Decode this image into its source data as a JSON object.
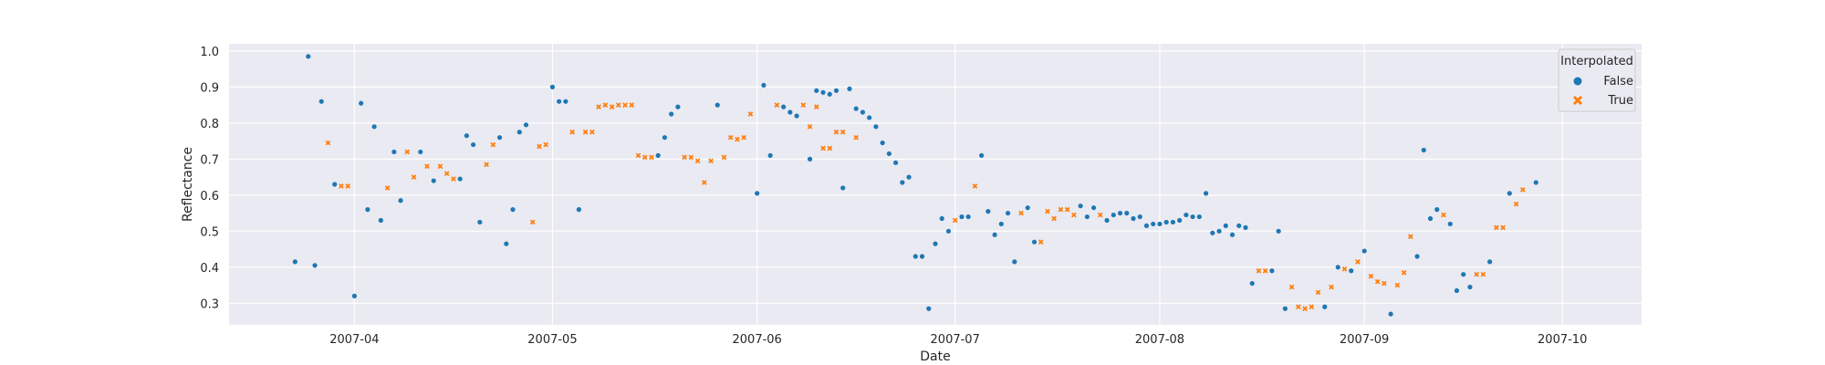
{
  "chart_data": {
    "type": "scatter",
    "title": "",
    "xlabel": "Date",
    "ylabel": "Reflectance",
    "xlim": [
      "2007-03-13",
      "2007-10-13"
    ],
    "ylim": [
      0.24,
      1.02
    ],
    "x_ticks": [
      "2007-04-01",
      "2007-05-01",
      "2007-06-01",
      "2007-07-01",
      "2007-08-01",
      "2007-09-01",
      "2007-10-01"
    ],
    "x_tick_labels": [
      "2007-04",
      "2007-05",
      "2007-06",
      "2007-07",
      "2007-08",
      "2007-09",
      "2007-10"
    ],
    "y_ticks": [
      0.3,
      0.4,
      0.5,
      0.6,
      0.7,
      0.8,
      0.9,
      1.0
    ],
    "y_tick_labels": [
      "0.3",
      "0.4",
      "0.5",
      "0.6",
      "0.7",
      "0.8",
      "0.9",
      "1.0"
    ],
    "grid": true,
    "background": "#eaeaf2",
    "legend": {
      "title": "Interpolated",
      "placement": "top-right"
    },
    "series": [
      {
        "name": "False",
        "color": "#1f77b4",
        "marker": "circle",
        "points": [
          [
            "2007-03-23",
            0.415
          ],
          [
            "2007-03-25",
            0.985
          ],
          [
            "2007-03-26",
            0.405
          ],
          [
            "2007-03-27",
            0.86
          ],
          [
            "2007-03-29",
            0.63
          ],
          [
            "2007-04-01",
            0.32
          ],
          [
            "2007-04-02",
            0.855
          ],
          [
            "2007-04-03",
            0.56
          ],
          [
            "2007-04-04",
            0.79
          ],
          [
            "2007-04-05",
            0.53
          ],
          [
            "2007-04-07",
            0.72
          ],
          [
            "2007-04-08",
            0.585
          ],
          [
            "2007-04-11",
            0.72
          ],
          [
            "2007-04-13",
            0.64
          ],
          [
            "2007-04-17",
            0.645
          ],
          [
            "2007-04-18",
            0.765
          ],
          [
            "2007-04-19",
            0.74
          ],
          [
            "2007-04-20",
            0.525
          ],
          [
            "2007-04-23",
            0.76
          ],
          [
            "2007-04-24",
            0.465
          ],
          [
            "2007-04-25",
            0.56
          ],
          [
            "2007-04-26",
            0.775
          ],
          [
            "2007-04-27",
            0.795
          ],
          [
            "2007-05-01",
            0.9
          ],
          [
            "2007-05-02",
            0.86
          ],
          [
            "2007-05-03",
            0.86
          ],
          [
            "2007-05-05",
            0.56
          ],
          [
            "2007-05-17",
            0.71
          ],
          [
            "2007-05-18",
            0.76
          ],
          [
            "2007-05-19",
            0.825
          ],
          [
            "2007-05-20",
            0.845
          ],
          [
            "2007-05-26",
            0.85
          ],
          [
            "2007-06-01",
            0.605
          ],
          [
            "2007-06-02",
            0.905
          ],
          [
            "2007-06-03",
            0.71
          ],
          [
            "2007-06-05",
            0.845
          ],
          [
            "2007-06-06",
            0.83
          ],
          [
            "2007-06-07",
            0.82
          ],
          [
            "2007-06-09",
            0.7
          ],
          [
            "2007-06-10",
            0.89
          ],
          [
            "2007-06-11",
            0.885
          ],
          [
            "2007-06-12",
            0.88
          ],
          [
            "2007-06-13",
            0.89
          ],
          [
            "2007-06-14",
            0.62
          ],
          [
            "2007-06-15",
            0.895
          ],
          [
            "2007-06-16",
            0.84
          ],
          [
            "2007-06-17",
            0.83
          ],
          [
            "2007-06-18",
            0.815
          ],
          [
            "2007-06-19",
            0.79
          ],
          [
            "2007-06-20",
            0.745
          ],
          [
            "2007-06-21",
            0.715
          ],
          [
            "2007-06-22",
            0.69
          ],
          [
            "2007-06-23",
            0.635
          ],
          [
            "2007-06-24",
            0.65
          ],
          [
            "2007-06-25",
            0.43
          ],
          [
            "2007-06-26",
            0.43
          ],
          [
            "2007-06-27",
            0.285
          ],
          [
            "2007-06-28",
            0.465
          ],
          [
            "2007-06-29",
            0.535
          ],
          [
            "2007-06-30",
            0.5
          ],
          [
            "2007-07-02",
            0.54
          ],
          [
            "2007-07-03",
            0.54
          ],
          [
            "2007-07-05",
            0.71
          ],
          [
            "2007-07-06",
            0.555
          ],
          [
            "2007-07-07",
            0.49
          ],
          [
            "2007-07-08",
            0.52
          ],
          [
            "2007-07-09",
            0.55
          ],
          [
            "2007-07-10",
            0.415
          ],
          [
            "2007-07-12",
            0.565
          ],
          [
            "2007-07-13",
            0.47
          ],
          [
            "2007-07-20",
            0.57
          ],
          [
            "2007-07-21",
            0.54
          ],
          [
            "2007-07-22",
            0.565
          ],
          [
            "2007-07-24",
            0.53
          ],
          [
            "2007-07-25",
            0.545
          ],
          [
            "2007-07-26",
            0.55
          ],
          [
            "2007-07-27",
            0.55
          ],
          [
            "2007-07-28",
            0.535
          ],
          [
            "2007-07-29",
            0.54
          ],
          [
            "2007-07-30",
            0.515
          ],
          [
            "2007-07-31",
            0.52
          ],
          [
            "2007-08-01",
            0.52
          ],
          [
            "2007-08-02",
            0.525
          ],
          [
            "2007-08-03",
            0.525
          ],
          [
            "2007-08-04",
            0.53
          ],
          [
            "2007-08-05",
            0.545
          ],
          [
            "2007-08-06",
            0.54
          ],
          [
            "2007-08-07",
            0.54
          ],
          [
            "2007-08-08",
            0.605
          ],
          [
            "2007-08-09",
            0.495
          ],
          [
            "2007-08-10",
            0.5
          ],
          [
            "2007-08-11",
            0.515
          ],
          [
            "2007-08-12",
            0.49
          ],
          [
            "2007-08-13",
            0.515
          ],
          [
            "2007-08-14",
            0.51
          ],
          [
            "2007-08-15",
            0.355
          ],
          [
            "2007-08-18",
            0.39
          ],
          [
            "2007-08-19",
            0.5
          ],
          [
            "2007-08-20",
            0.285
          ],
          [
            "2007-08-26",
            0.29
          ],
          [
            "2007-08-28",
            0.4
          ],
          [
            "2007-08-30",
            0.39
          ],
          [
            "2007-09-01",
            0.445
          ],
          [
            "2007-09-05",
            0.27
          ],
          [
            "2007-09-09",
            0.43
          ],
          [
            "2007-09-10",
            0.725
          ],
          [
            "2007-09-11",
            0.535
          ],
          [
            "2007-09-12",
            0.56
          ],
          [
            "2007-09-14",
            0.52
          ],
          [
            "2007-09-15",
            0.335
          ],
          [
            "2007-09-16",
            0.38
          ],
          [
            "2007-09-17",
            0.345
          ],
          [
            "2007-09-20",
            0.415
          ],
          [
            "2007-09-23",
            0.605
          ],
          [
            "2007-09-27",
            0.635
          ]
        ]
      },
      {
        "name": "True",
        "color": "#ff7f0e",
        "marker": "x",
        "points": [
          [
            "2007-03-28",
            0.745
          ],
          [
            "2007-03-30",
            0.625
          ],
          [
            "2007-03-31",
            0.625
          ],
          [
            "2007-04-06",
            0.62
          ],
          [
            "2007-04-09",
            0.72
          ],
          [
            "2007-04-10",
            0.65
          ],
          [
            "2007-04-12",
            0.68
          ],
          [
            "2007-04-14",
            0.68
          ],
          [
            "2007-04-15",
            0.66
          ],
          [
            "2007-04-16",
            0.645
          ],
          [
            "2007-04-21",
            0.685
          ],
          [
            "2007-04-22",
            0.74
          ],
          [
            "2007-04-28",
            0.525
          ],
          [
            "2007-04-29",
            0.735
          ],
          [
            "2007-04-30",
            0.74
          ],
          [
            "2007-05-04",
            0.775
          ],
          [
            "2007-05-06",
            0.775
          ],
          [
            "2007-05-07",
            0.775
          ],
          [
            "2007-05-08",
            0.845
          ],
          [
            "2007-05-09",
            0.85
          ],
          [
            "2007-05-10",
            0.845
          ],
          [
            "2007-05-11",
            0.85
          ],
          [
            "2007-05-12",
            0.85
          ],
          [
            "2007-05-13",
            0.85
          ],
          [
            "2007-05-14",
            0.71
          ],
          [
            "2007-05-15",
            0.705
          ],
          [
            "2007-05-16",
            0.705
          ],
          [
            "2007-05-21",
            0.705
          ],
          [
            "2007-05-22",
            0.705
          ],
          [
            "2007-05-23",
            0.695
          ],
          [
            "2007-05-24",
            0.635
          ],
          [
            "2007-05-25",
            0.695
          ],
          [
            "2007-05-27",
            0.705
          ],
          [
            "2007-05-28",
            0.76
          ],
          [
            "2007-05-29",
            0.755
          ],
          [
            "2007-05-30",
            0.76
          ],
          [
            "2007-05-31",
            0.825
          ],
          [
            "2007-06-04",
            0.85
          ],
          [
            "2007-06-08",
            0.85
          ],
          [
            "2007-06-09",
            0.79
          ],
          [
            "2007-06-10",
            0.845
          ],
          [
            "2007-06-11",
            0.73
          ],
          [
            "2007-06-12",
            0.73
          ],
          [
            "2007-06-13",
            0.775
          ],
          [
            "2007-06-14",
            0.775
          ],
          [
            "2007-06-16",
            0.76
          ],
          [
            "2007-07-01",
            0.53
          ],
          [
            "2007-07-04",
            0.625
          ],
          [
            "2007-07-11",
            0.55
          ],
          [
            "2007-07-14",
            0.47
          ],
          [
            "2007-07-15",
            0.555
          ],
          [
            "2007-07-16",
            0.535
          ],
          [
            "2007-07-17",
            0.56
          ],
          [
            "2007-07-18",
            0.56
          ],
          [
            "2007-07-19",
            0.545
          ],
          [
            "2007-07-23",
            0.545
          ],
          [
            "2007-08-16",
            0.39
          ],
          [
            "2007-08-17",
            0.39
          ],
          [
            "2007-08-21",
            0.345
          ],
          [
            "2007-08-22",
            0.29
          ],
          [
            "2007-08-23",
            0.285
          ],
          [
            "2007-08-24",
            0.29
          ],
          [
            "2007-08-25",
            0.33
          ],
          [
            "2007-08-27",
            0.345
          ],
          [
            "2007-08-29",
            0.395
          ],
          [
            "2007-08-31",
            0.415
          ],
          [
            "2007-09-02",
            0.375
          ],
          [
            "2007-09-03",
            0.36
          ],
          [
            "2007-09-04",
            0.355
          ],
          [
            "2007-09-06",
            0.35
          ],
          [
            "2007-09-07",
            0.385
          ],
          [
            "2007-09-08",
            0.485
          ],
          [
            "2007-09-13",
            0.545
          ],
          [
            "2007-09-18",
            0.38
          ],
          [
            "2007-09-19",
            0.38
          ],
          [
            "2007-09-21",
            0.51
          ],
          [
            "2007-09-22",
            0.51
          ],
          [
            "2007-09-24",
            0.575
          ],
          [
            "2007-09-25",
            0.615
          ]
        ]
      }
    ]
  }
}
